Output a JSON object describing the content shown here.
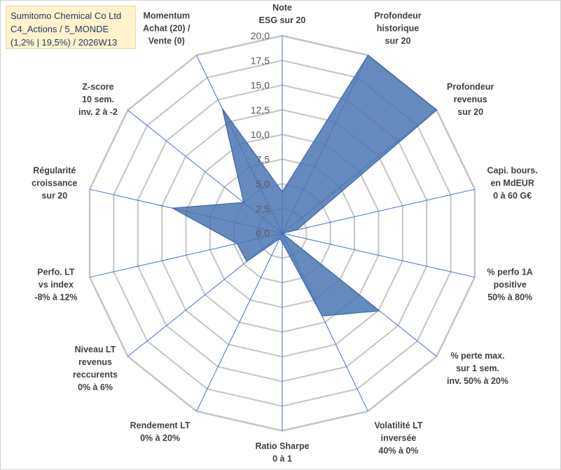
{
  "title": {
    "line1": "Sumitomo Chemical Co Ltd",
    "line2": "C4_Actions / 5_MONDE",
    "line3": "(1,2% | 19,5%) / 2026W13"
  },
  "colors": {
    "fill": "#4a76b3",
    "stroke": "#3b67a8",
    "grid": "#c4c4c4",
    "spoke": "#4472c4",
    "title_bg": "#fff2cc",
    "title_text": "#1f3a5f"
  },
  "chart_data": {
    "type": "radar",
    "rlim": [
      0,
      20
    ],
    "rticks": [
      "0,0",
      "2,5",
      "5,0",
      "7,5",
      "10,0",
      "12,5",
      "15,0",
      "17,5",
      "20,0"
    ],
    "grid": true,
    "categories": [
      [
        "Note",
        "ESG sur 20"
      ],
      [
        "Profondeur",
        "historique",
        "sur 20"
      ],
      [
        "Profondeur",
        "revenus",
        "sur 20"
      ],
      [
        "Capi. bours.",
        "en MdEUR",
        "0 à 60 G€"
      ],
      [
        "% perfo 1A",
        "positive",
        "50% à 80%"
      ],
      [
        "% perte max.",
        "sur 1 sem.",
        "inv. 50% à 20%"
      ],
      [
        "Volatilité LT",
        "inversée",
        "40% à 0%"
      ],
      [
        "Ratio Sharpe",
        "0 à 1"
      ],
      [
        "Rendement LT",
        "0% à 20%"
      ],
      [
        "Niveau LT",
        "revenus",
        "reccurents",
        "0% à 6%"
      ],
      [
        "Perfo. LT",
        "vs index",
        "-8% à 12%"
      ],
      [
        "Régularité",
        "croissance",
        "sur 20"
      ],
      [
        "Z-score",
        "10 sem.",
        "inv. 2 à -2"
      ],
      [
        "Momentum",
        "Achat (20) /",
        "Vente (0)"
      ]
    ],
    "values": [
      4.2,
      20,
      20,
      1.5,
      0,
      12.6,
      9.3,
      0.9,
      0.6,
      4.6,
      4.7,
      11.4,
      5.0,
      14.0
    ]
  }
}
